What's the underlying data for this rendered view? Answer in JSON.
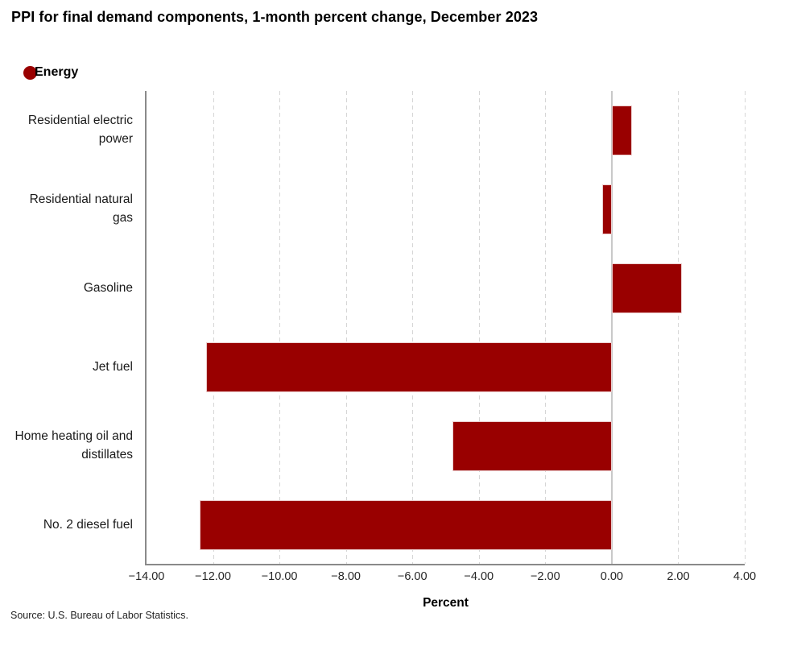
{
  "title": "PPI for final demand components, 1-month percent change, December 2023",
  "legend": {
    "label": "Energy",
    "marker": "circle-icon"
  },
  "chart_data": {
    "type": "bar",
    "orientation": "horizontal",
    "title": "PPI for final demand components, 1-month percent change, December 2023",
    "series_name": "Energy",
    "categories": [
      "Residential electric power",
      "Residential natural gas",
      "Gasoline",
      "Jet fuel",
      "Home heating oil and distillates",
      "No. 2 diesel fuel"
    ],
    "values": [
      0.6,
      -0.3,
      2.1,
      -12.2,
      -4.8,
      -12.4
    ],
    "xlabel": "Percent",
    "ylabel": "",
    "xlim": [
      -14,
      4
    ],
    "tick_step": 2,
    "tick_labels": [
      "−14.00",
      "−12.00",
      "−10.00",
      "−8.00",
      "−6.00",
      "−4.00",
      "−2.00",
      "0.00",
      "2.00",
      "4.00"
    ],
    "bar_color": "#990000",
    "grid": "vertical-dashed",
    "zero_line": true,
    "legend_position": "top-left"
  },
  "source": "Source: U.S. Bureau of Labor Statistics."
}
